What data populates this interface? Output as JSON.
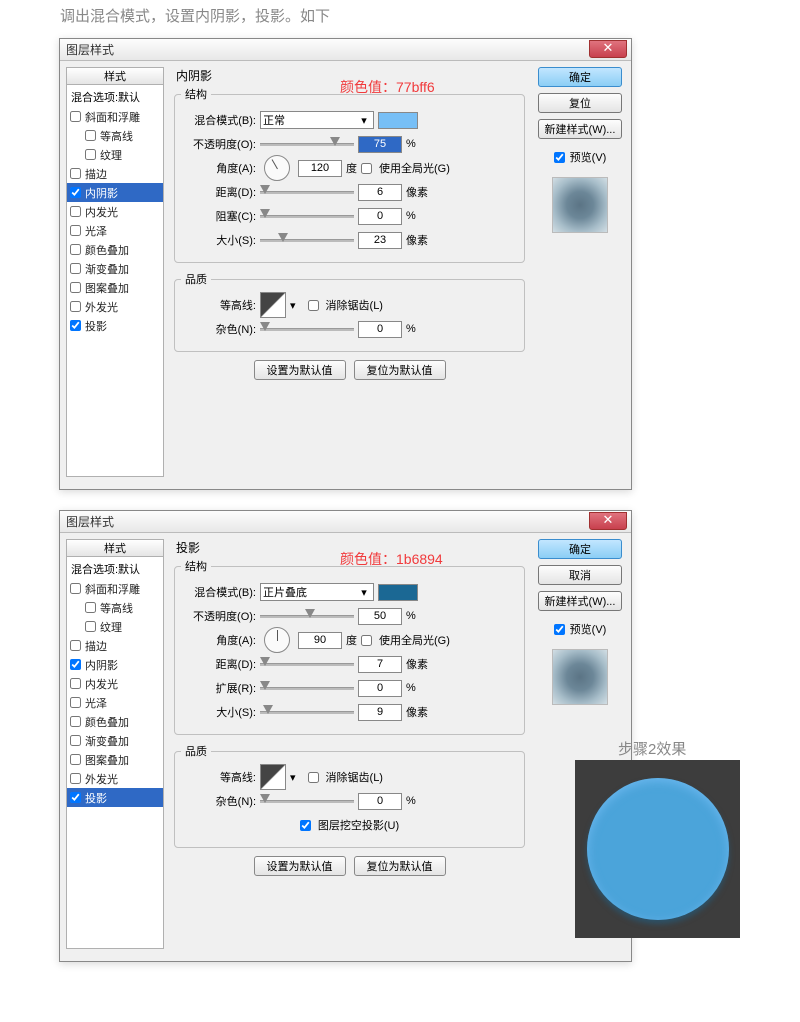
{
  "instruction": "调出混合模式，设置内阴影，投影。如下",
  "dialog1": {
    "title": "图层样式",
    "colorNote": "颜色值：77bff6",
    "swatchColor": "#77bff6",
    "selected": "内阴影",
    "sectTitle": "内阴影",
    "struct": "结构",
    "quality": "品质",
    "blendLabel": "混合模式(B):",
    "blendVal": "正常",
    "opacityLabel": "不透明度(O):",
    "opacityVal": "75",
    "opacitySliderPos": 70,
    "angleLabel": "角度(A):",
    "angleVal": "120",
    "angleDeg": "度",
    "globalLight": "使用全局光(G)",
    "distLabel": "距离(D):",
    "distVal": "6",
    "distUnit": "像素",
    "chokeLabel": "阻塞(C):",
    "chokeVal": "0",
    "sizeLabel": "大小(S):",
    "sizeVal": "23",
    "sizeUnit": "像素",
    "sizeSliderPos": 18,
    "contourLabel": "等高线:",
    "contourAnti": "消除锯齿(L)",
    "noiseLabel": "杂色(N):",
    "noiseVal": "0",
    "btnDefault": "设置为默认值",
    "btnReset": "复位为默认值",
    "ok": "确定",
    "cancelReset": "复位",
    "newStyle": "新建样式(W)...",
    "previewLabel": "预览(V)"
  },
  "dialog2": {
    "title": "图层样式",
    "colorNote": "颜色值：1b6894",
    "swatchColor": "#1b6894",
    "selected": "投影",
    "sectTitle": "投影",
    "struct": "结构",
    "quality": "品质",
    "blendLabel": "混合模式(B):",
    "blendVal": "正片叠底",
    "opacityLabel": "不透明度(O):",
    "opacityVal": "50",
    "opacitySliderPos": 45,
    "angleLabel": "角度(A):",
    "angleVal": "90",
    "angleDeg": "度",
    "globalLight": "使用全局光(G)",
    "distLabel": "距离(D):",
    "distVal": "7",
    "distUnit": "像素",
    "spreadLabel": "扩展(R):",
    "spreadVal": "0",
    "sizeLabel": "大小(S):",
    "sizeVal": "9",
    "sizeUnit": "像素",
    "contourLabel": "等高线:",
    "contourAnti": "消除锯齿(L)",
    "noiseLabel": "杂色(N):",
    "noiseVal": "0",
    "knockout": "图层挖空投影(U)",
    "btnDefault": "设置为默认值",
    "btnReset": "复位为默认值",
    "ok": "确定",
    "cancel": "取消",
    "newStyle": "新建样式(W)...",
    "previewLabel": "预览(V)"
  },
  "styles": {
    "header": "样式",
    "sub": "混合选项:默认",
    "items": [
      {
        "label": "斜面和浮雕",
        "checked": false,
        "indent": false
      },
      {
        "label": "等高线",
        "checked": false,
        "indent": true
      },
      {
        "label": "纹理",
        "checked": false,
        "indent": true
      },
      {
        "label": "描边",
        "checked": false,
        "indent": false
      },
      {
        "label": "内阴影",
        "checked": true,
        "indent": false
      },
      {
        "label": "内发光",
        "checked": false,
        "indent": false
      },
      {
        "label": "光泽",
        "checked": false,
        "indent": false
      },
      {
        "label": "颜色叠加",
        "checked": false,
        "indent": false
      },
      {
        "label": "渐变叠加",
        "checked": false,
        "indent": false
      },
      {
        "label": "图案叠加",
        "checked": false,
        "indent": false
      },
      {
        "label": "外发光",
        "checked": false,
        "indent": false
      },
      {
        "label": "投影",
        "checked": true,
        "indent": false
      }
    ]
  },
  "resultLabel": "步骤2效果",
  "pct": "%"
}
